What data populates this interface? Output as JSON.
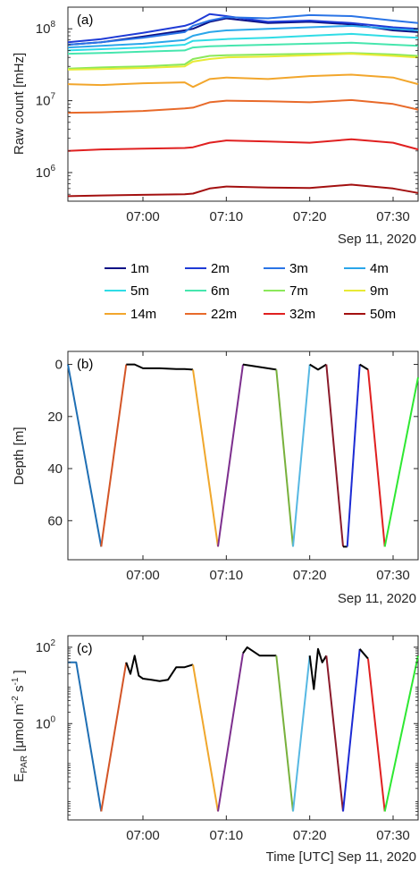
{
  "chart_data": [
    {
      "type": "line",
      "panel_label": "(a)",
      "ylabel": "Raw count [mHz]",
      "yscale": "log",
      "ylim": [
        400000,
        200000000
      ],
      "xlim": [
        "06:51",
        "07:33"
      ],
      "x_ticks": [
        "07:00",
        "07:10",
        "07:20",
        "07:30"
      ],
      "y_ticks": [
        {
          "base": "10",
          "exp": "6",
          "value": 1000000
        },
        {
          "base": "10",
          "exp": "7",
          "value": 10000000
        },
        {
          "base": "10",
          "exp": "8",
          "value": 100000000
        }
      ],
      "date_label": "Sep 11, 2020",
      "x": [
        "06:51",
        "06:55",
        "07:00",
        "07:05",
        "07:06",
        "07:08",
        "07:10",
        "07:15",
        "07:20",
        "07:25",
        "07:30",
        "07:33"
      ],
      "series": [
        {
          "name": "1m",
          "color": "#0b0f85",
          "values": [
            60000000,
            65000000,
            78000000,
            95000000,
            100000000,
            125000000,
            140000000,
            120000000,
            125000000,
            115000000,
            95000000,
            90000000
          ]
        },
        {
          "name": "2m",
          "color": "#1f3bd6",
          "values": [
            65000000,
            72000000,
            88000000,
            110000000,
            120000000,
            160000000,
            150000000,
            125000000,
            130000000,
            120000000,
            105000000,
            100000000
          ]
        },
        {
          "name": "3m",
          "color": "#2a74e6",
          "values": [
            60000000,
            65000000,
            75000000,
            90000000,
            110000000,
            130000000,
            145000000,
            140000000,
            155000000,
            150000000,
            130000000,
            120000000
          ]
        },
        {
          "name": "4m",
          "color": "#2aa6ea",
          "values": [
            55000000,
            58000000,
            62000000,
            70000000,
            80000000,
            90000000,
            95000000,
            100000000,
            105000000,
            110000000,
            100000000,
            95000000
          ]
        },
        {
          "name": "5m",
          "color": "#2fdce6",
          "values": [
            50000000,
            52000000,
            55000000,
            60000000,
            68000000,
            70000000,
            72000000,
            75000000,
            80000000,
            85000000,
            78000000,
            75000000
          ]
        },
        {
          "name": "6m",
          "color": "#46e6ae",
          "values": [
            45000000,
            46000000,
            48000000,
            50000000,
            55000000,
            57000000,
            58000000,
            60000000,
            62000000,
            64000000,
            60000000,
            58000000
          ]
        },
        {
          "name": "7m",
          "color": "#8be85a",
          "values": [
            28000000,
            29000000,
            30000000,
            32000000,
            38000000,
            42000000,
            43000000,
            44000000,
            45000000,
            46000000,
            44000000,
            42000000
          ]
        },
        {
          "name": "9m",
          "color": "#e8ea35",
          "values": [
            27000000,
            27500000,
            28500000,
            30000000,
            35000000,
            38000000,
            40000000,
            41000000,
            43000000,
            45000000,
            42000000,
            40000000
          ]
        },
        {
          "name": "14m",
          "color": "#f2a62c",
          "values": [
            17000000,
            16500000,
            17500000,
            18000000,
            15500000,
            20000000,
            21000000,
            20000000,
            22000000,
            23000000,
            21000000,
            17000000
          ]
        },
        {
          "name": "22m",
          "color": "#e86a2a",
          "values": [
            6800000,
            6900000,
            7200000,
            7800000,
            8000000,
            9500000,
            10000000,
            9800000,
            9500000,
            10200000,
            9000000,
            7500000
          ]
        },
        {
          "name": "32m",
          "color": "#e02020",
          "values": [
            2000000,
            2100000,
            2150000,
            2200000,
            2250000,
            2600000,
            2800000,
            2700000,
            2600000,
            2900000,
            2600000,
            2100000
          ]
        },
        {
          "name": "50m",
          "color": "#a31010",
          "values": [
            470000,
            480000,
            490000,
            500000,
            510000,
            600000,
            640000,
            620000,
            610000,
            680000,
            600000,
            520000
          ]
        }
      ]
    },
    {
      "type": "line",
      "panel_label": "(b)",
      "ylabel": "Depth [m]",
      "ylim": [
        0,
        75
      ],
      "y_reversed": true,
      "xlim": [
        "06:51",
        "07:33"
      ],
      "x_ticks": [
        "07:00",
        "07:10",
        "07:20",
        "07:30"
      ],
      "y_ticks": [
        0,
        20,
        40,
        60
      ],
      "date_label": "Sep 11, 2020",
      "segments": [
        {
          "color": "#1f6fb4",
          "x": [
            "06:51",
            "06:55"
          ],
          "y": [
            0,
            70
          ]
        },
        {
          "color": "#d45526",
          "x": [
            "06:55",
            "06:58"
          ],
          "y": [
            70,
            0
          ]
        },
        {
          "color": "#000000",
          "x": [
            "06:58",
            "06:59",
            "07:00",
            "07:01",
            "07:02",
            "07:04",
            "07:05",
            "07:06"
          ],
          "y": [
            0,
            0,
            1.5,
            1.5,
            1.5,
            1.8,
            1.8,
            2
          ]
        },
        {
          "color": "#f0a72c",
          "x": [
            "07:06",
            "07:09"
          ],
          "y": [
            2,
            70
          ]
        },
        {
          "color": "#7d2f8e",
          "x": [
            "07:09",
            "07:12"
          ],
          "y": [
            70,
            0
          ]
        },
        {
          "color": "#000000",
          "x": [
            "07:12",
            "07:14",
            "07:16"
          ],
          "y": [
            0,
            1,
            2
          ]
        },
        {
          "color": "#78b13c",
          "x": [
            "07:16",
            "07:18"
          ],
          "y": [
            2,
            70
          ]
        },
        {
          "color": "#57b8e3",
          "x": [
            "07:18",
            "07:20"
          ],
          "y": [
            70,
            0
          ]
        },
        {
          "color": "#000000",
          "x": [
            "07:20",
            "07:21",
            "07:22"
          ],
          "y": [
            0,
            2,
            0
          ]
        },
        {
          "color": "#8b1a2a",
          "x": [
            "07:22",
            "07:24"
          ],
          "y": [
            0,
            70
          ]
        },
        {
          "color": "#000000",
          "x": [
            "07:24",
            "07:24.5"
          ],
          "y": [
            70,
            70
          ]
        },
        {
          "color": "#1d2bd4",
          "x": [
            "07:24.5",
            "07:26"
          ],
          "y": [
            70,
            0
          ]
        },
        {
          "color": "#000000",
          "x": [
            "07:26",
            "07:27"
          ],
          "y": [
            0,
            2
          ]
        },
        {
          "color": "#e02020",
          "x": [
            "07:27",
            "07:29"
          ],
          "y": [
            2,
            70
          ]
        },
        {
          "color": "#2ee832",
          "x": [
            "07:29",
            "07:33"
          ],
          "y": [
            70,
            5
          ]
        }
      ]
    },
    {
      "type": "line",
      "panel_label": "(c)",
      "ylabel": "E_PAR [μmol m^-2 s^-1]",
      "yscale": "log",
      "ylim": [
        0.003,
        200
      ],
      "xlim": [
        "06:51",
        "07:33"
      ],
      "x_ticks": [
        "07:00",
        "07:10",
        "07:20",
        "07:30"
      ],
      "y_ticks": [
        {
          "base": "10",
          "exp": "0",
          "value": 1
        },
        {
          "base": "10",
          "exp": "2",
          "value": 100
        }
      ],
      "xlabel": "Time [UTC]   Sep 11, 2020",
      "segments": [
        {
          "color": "#1f6fb4",
          "x": [
            "06:51",
            "06:52",
            "06:55"
          ],
          "y": [
            40,
            40,
            0.005
          ]
        },
        {
          "color": "#d45526",
          "x": [
            "06:55",
            "06:58"
          ],
          "y": [
            0.005,
            40
          ]
        },
        {
          "color": "#000000",
          "x": [
            "06:58",
            "06:58.5",
            "06:59",
            "06:59.5",
            "07:00",
            "07:01",
            "07:02",
            "07:03",
            "07:04",
            "07:05",
            "07:06"
          ],
          "y": [
            40,
            20,
            60,
            18,
            15,
            14,
            13,
            14,
            30,
            30,
            35
          ]
        },
        {
          "color": "#f0a72c",
          "x": [
            "07:06",
            "07:09"
          ],
          "y": [
            35,
            0.005
          ]
        },
        {
          "color": "#7d2f8e",
          "x": [
            "07:09",
            "07:12"
          ],
          "y": [
            0.005,
            70
          ]
        },
        {
          "color": "#000000",
          "x": [
            "07:12",
            "07:12.5",
            "07:14",
            "07:16"
          ],
          "y": [
            70,
            100,
            60,
            60
          ]
        },
        {
          "color": "#78b13c",
          "x": [
            "07:16",
            "07:18"
          ],
          "y": [
            60,
            0.005
          ]
        },
        {
          "color": "#57b8e3",
          "x": [
            "07:18",
            "07:20"
          ],
          "y": [
            0.005,
            60
          ]
        },
        {
          "color": "#000000",
          "x": [
            "07:20",
            "07:20.5",
            "07:21",
            "07:21.5",
            "07:22"
          ],
          "y": [
            60,
            8,
            90,
            40,
            60
          ]
        },
        {
          "color": "#8b1a2a",
          "x": [
            "07:22",
            "07:24"
          ],
          "y": [
            60,
            0.005
          ]
        },
        {
          "color": "#1d2bd4",
          "x": [
            "07:24",
            "07:26"
          ],
          "y": [
            0.005,
            90
          ]
        },
        {
          "color": "#000000",
          "x": [
            "07:26",
            "07:27"
          ],
          "y": [
            90,
            50
          ]
        },
        {
          "color": "#e02020",
          "x": [
            "07:27",
            "07:29"
          ],
          "y": [
            50,
            0.005
          ]
        },
        {
          "color": "#2ee832",
          "x": [
            "07:29",
            "07:33"
          ],
          "y": [
            0.005,
            60
          ]
        }
      ]
    }
  ]
}
